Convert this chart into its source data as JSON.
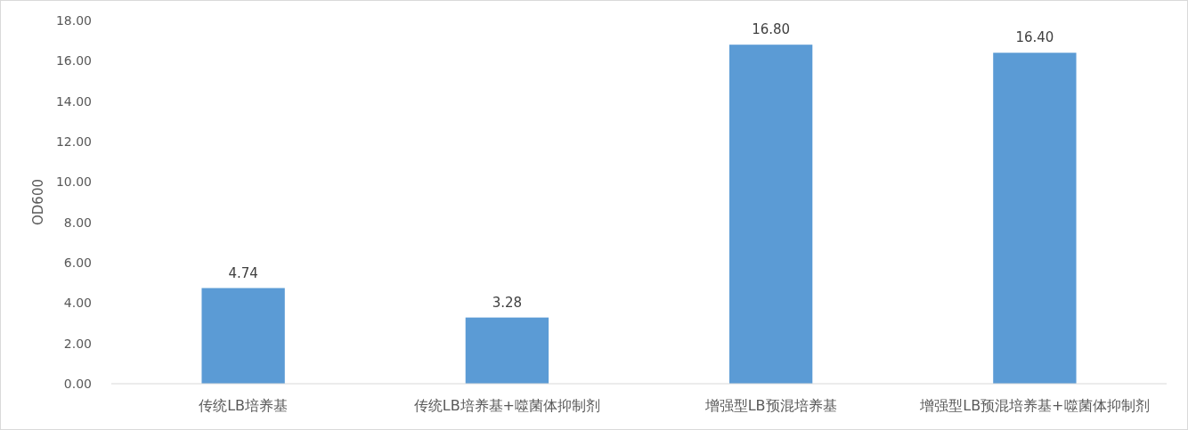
{
  "chart_data": {
    "type": "bar",
    "ylabel": "OD600",
    "categories": [
      "传统LB培养基",
      "传统LB培养基+噬菌体抑制剂",
      "增强型LB预混培养基",
      "增强型LB预混培养基+噬菌体抑制剂"
    ],
    "values": [
      4.74,
      3.28,
      16.8,
      16.4
    ],
    "value_labels": [
      "4.74",
      "3.28",
      "16.80",
      "16.40"
    ],
    "color": "#5b9bd5",
    "ylim": [
      0,
      18
    ],
    "yticks": [
      {
        "value": 0,
        "label": "0.00"
      },
      {
        "value": 2,
        "label": "2.00"
      },
      {
        "value": 4,
        "label": "4.00"
      },
      {
        "value": 6,
        "label": "6.00"
      },
      {
        "value": 8,
        "label": "8.00"
      },
      {
        "value": 10,
        "label": "10.00"
      },
      {
        "value": 12,
        "label": "12.00"
      },
      {
        "value": 14,
        "label": "14.00"
      },
      {
        "value": 16,
        "label": "16.00"
      },
      {
        "value": 18,
        "label": "18.00"
      }
    ]
  }
}
